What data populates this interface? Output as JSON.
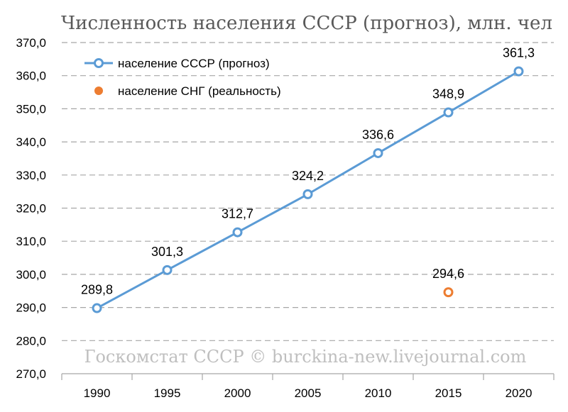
{
  "chart_data": {
    "type": "line",
    "title": "Численность населения СССР (прогноз), млн. чел",
    "categories": [
      "1990",
      "1995",
      "2000",
      "2005",
      "2010",
      "2015",
      "2020"
    ],
    "ylim": [
      270,
      370
    ],
    "y_ticks": [
      "270,0",
      "280,0",
      "290,0",
      "300,0",
      "310,0",
      "320,0",
      "330,0",
      "340,0",
      "350,0",
      "360,0",
      "370,0"
    ],
    "grid": true,
    "legend_position": "top-left",
    "series": [
      {
        "name": "население СССР (прогноз)",
        "color": "#5b9bd5",
        "marker": "hollow-circle",
        "points": [
          {
            "x": "1990",
            "y": 289.8,
            "label": "289,8"
          },
          {
            "x": "1995",
            "y": 301.3,
            "label": "301,3"
          },
          {
            "x": "2000",
            "y": 312.7,
            "label": "312,7"
          },
          {
            "x": "2005",
            "y": 324.2,
            "label": "324,2"
          },
          {
            "x": "2010",
            "y": 336.6,
            "label": "336,6"
          },
          {
            "x": "2015",
            "y": 348.9,
            "label": "348,9"
          },
          {
            "x": "2020",
            "y": 361.3,
            "label": "361,3"
          }
        ]
      },
      {
        "name": "население СНГ (реальность)",
        "color": "#ed7d31",
        "marker": "hollow-circle",
        "points": [
          {
            "x": "2015",
            "y": 294.6,
            "label": "294,6"
          }
        ]
      }
    ],
    "watermark": "Госкомстат СССР © burckina-new.livejournal.com"
  }
}
